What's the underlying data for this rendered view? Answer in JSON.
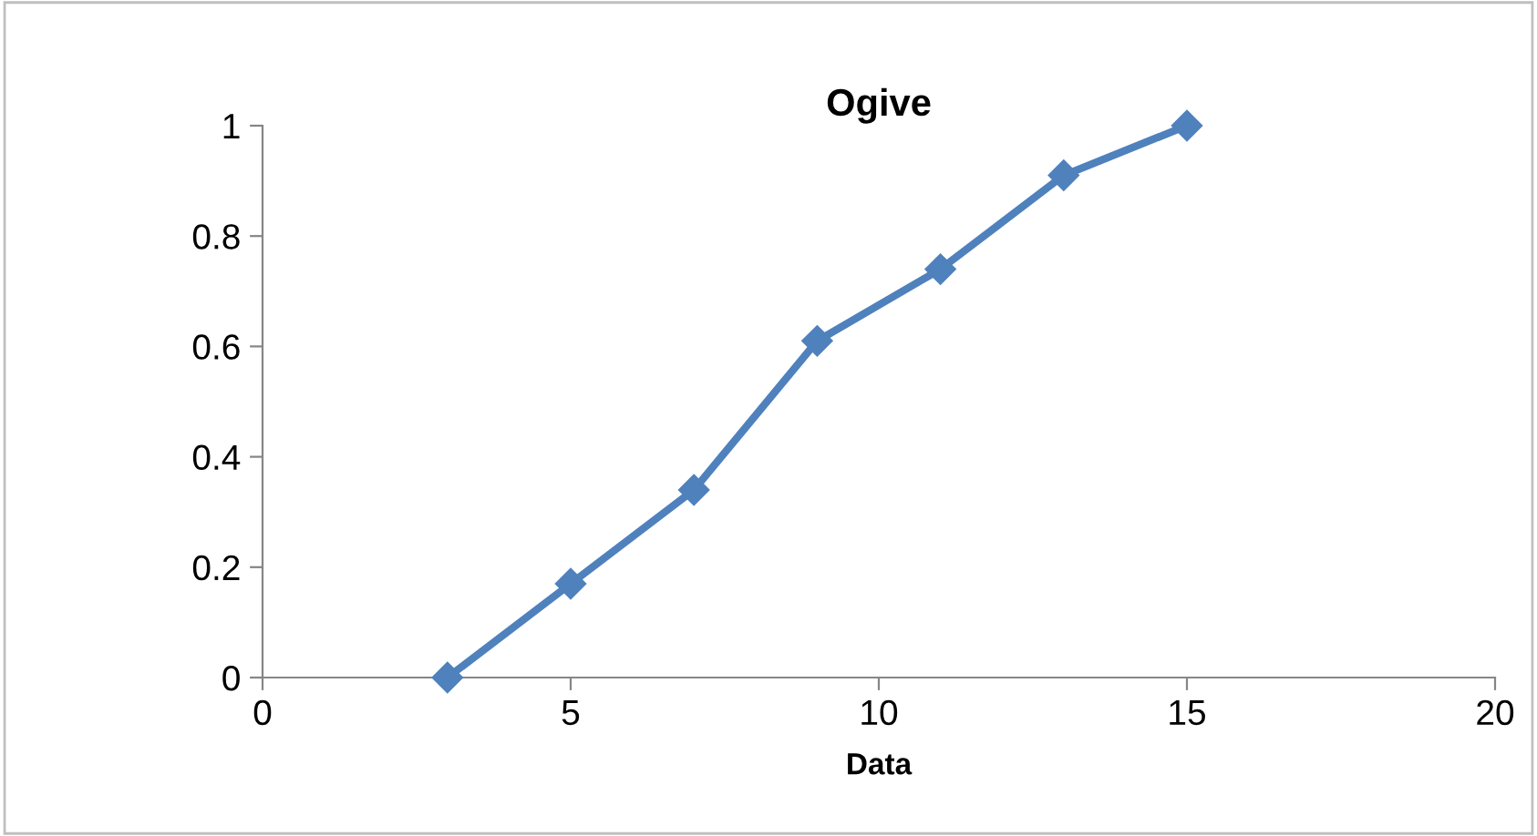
{
  "chart_data": {
    "type": "line",
    "title": "Ogive",
    "xlabel": "Data",
    "x": [
      3,
      5,
      7,
      9,
      11,
      13,
      15
    ],
    "series": [
      {
        "color": "#4f81bd",
        "values": [
          0,
          0.17,
          0.34,
          0.61,
          0.74,
          0.91,
          1
        ]
      }
    ],
    "xlim": [
      0,
      20
    ],
    "xticks": [
      0,
      5,
      10,
      15,
      20
    ],
    "ylim": [
      0,
      1
    ],
    "yticks": [
      0,
      0.2,
      0.4,
      0.6,
      0.8,
      1
    ],
    "grid": false,
    "legend": false,
    "marker": "diamond",
    "line_style": "solid"
  }
}
